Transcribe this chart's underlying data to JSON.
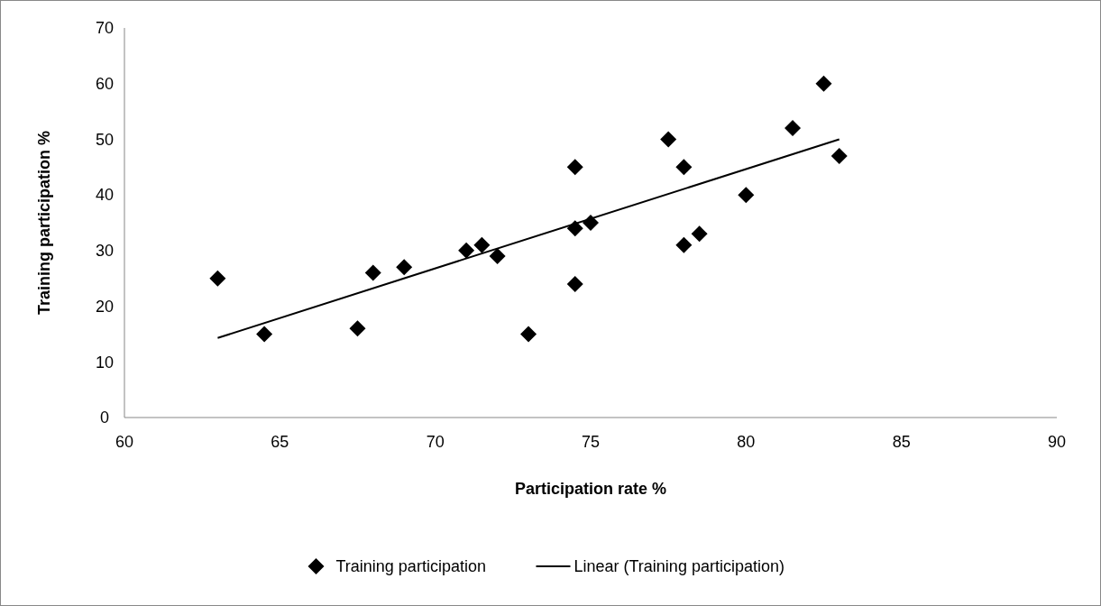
{
  "chart_data": {
    "type": "scatter",
    "xlabel": "Participation rate %",
    "ylabel": "Training participation %",
    "xlim": [
      60,
      90
    ],
    "xticks": [
      60,
      65,
      70,
      75,
      80,
      85,
      90
    ],
    "ylim": [
      0,
      70
    ],
    "yticks": [
      0,
      10,
      20,
      30,
      40,
      50,
      60,
      70
    ],
    "grid": false,
    "legend": "bottom",
    "series": [
      {
        "name": "Training participation",
        "marker": "diamond",
        "color": "#000000",
        "x": [
          63,
          64.5,
          67.5,
          68,
          69,
          71,
          71.5,
          72,
          73,
          74.5,
          74.5,
          74.5,
          75,
          77.5,
          78,
          78,
          78.5,
          80,
          81.5,
          82.5,
          83
        ],
        "values": [
          25,
          15,
          16,
          26,
          27,
          30,
          31,
          29,
          15,
          45,
          34,
          24,
          35,
          50,
          45,
          31,
          33,
          40,
          52,
          60,
          47
        ]
      },
      {
        "name": "Linear (Training participation)",
        "type": "line",
        "marker": "none",
        "line_style": "solid",
        "color": "#000000",
        "x": [
          63,
          83
        ],
        "values": [
          14.3,
          50
        ]
      }
    ]
  }
}
